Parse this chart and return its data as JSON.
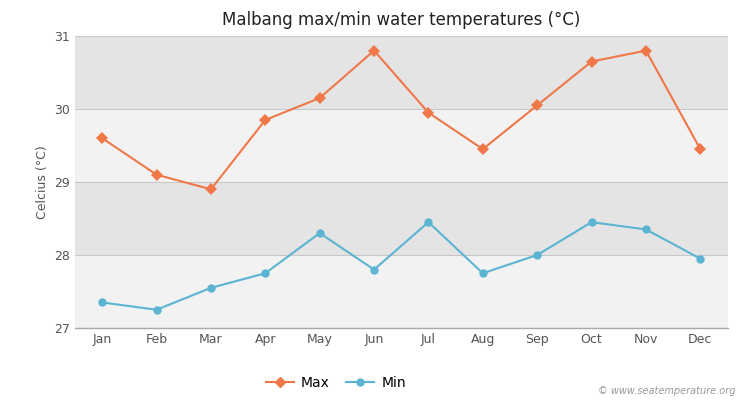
{
  "title": "Malbang max/min water temperatures (°C)",
  "ylabel": "Celcius (°C)",
  "months": [
    "Jan",
    "Feb",
    "Mar",
    "Apr",
    "May",
    "Jun",
    "Jul",
    "Aug",
    "Sep",
    "Oct",
    "Nov",
    "Dec"
  ],
  "max_temps": [
    29.6,
    29.1,
    28.9,
    29.85,
    30.15,
    30.8,
    29.95,
    29.45,
    30.05,
    30.65,
    30.8,
    29.45
  ],
  "min_temps": [
    27.35,
    27.25,
    27.55,
    27.75,
    28.3,
    27.8,
    28.45,
    27.75,
    28.0,
    28.45,
    28.35,
    27.95
  ],
  "max_color": "#f07848",
  "min_color": "#5ab4d2",
  "band_light": "#f2f2f2",
  "band_dark": "#e4e4e4",
  "bg_outer": "#ffffff",
  "ylim": [
    27,
    31
  ],
  "yticks": [
    27,
    28,
    29,
    30,
    31
  ],
  "watermark": "© www.seatemperature.org",
  "legend_max": "Max",
  "legend_min": "Min"
}
